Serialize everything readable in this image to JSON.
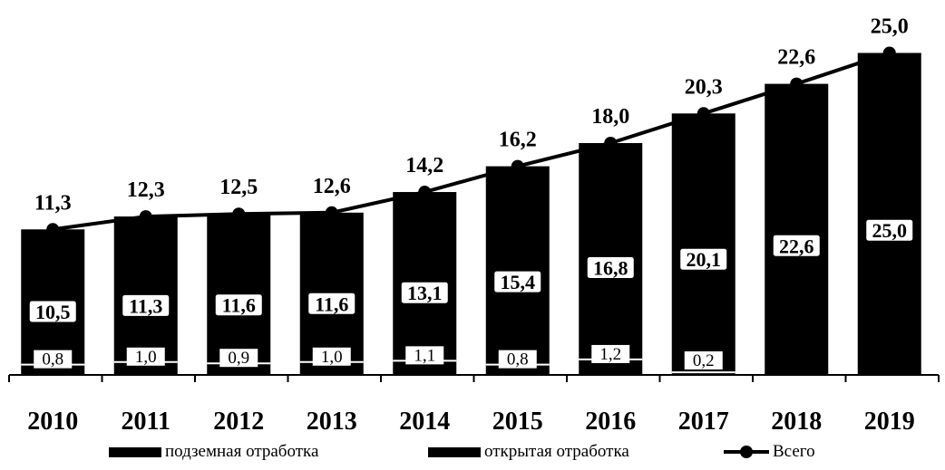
{
  "chart_data": {
    "type": "bar",
    "stacked": true,
    "title": "",
    "xlabel": "",
    "ylabel": "",
    "ylim": [
      0,
      27
    ],
    "grid": false,
    "legend_position": "bottom",
    "categories": [
      "2010",
      "2011",
      "2012",
      "2013",
      "2014",
      "2015",
      "2016",
      "2017",
      "2018",
      "2019"
    ],
    "series": [
      {
        "name": "подземная отработка",
        "kind": "bar",
        "color": "#000000",
        "values": [
          0.8,
          1.0,
          0.9,
          1.0,
          1.1,
          0.8,
          1.2,
          0.2,
          null,
          null
        ],
        "labels": [
          "0,8",
          "1,0",
          "0,9",
          "1,0",
          "1,1",
          "0,8",
          "1,2",
          "0,2",
          "",
          ""
        ]
      },
      {
        "name": "открытая отработка",
        "kind": "bar",
        "color": "#000000",
        "values": [
          10.5,
          11.3,
          11.6,
          11.6,
          13.1,
          15.4,
          16.8,
          20.1,
          22.6,
          25.0
        ],
        "labels": [
          "10,5",
          "11,3",
          "11,6",
          "11,6",
          "13,1",
          "15,4",
          "16,8",
          "20,1",
          "22,6",
          "25,0"
        ]
      },
      {
        "name": "Всего",
        "kind": "line",
        "color": "#000000",
        "values": [
          11.3,
          12.3,
          12.5,
          12.6,
          14.2,
          16.2,
          18.0,
          20.3,
          22.6,
          25.0
        ],
        "labels": [
          "11,3",
          "12,3",
          "12,5",
          "12,6",
          "14,2",
          "16,2",
          "18,0",
          "20,3",
          "22,6",
          "25,0"
        ]
      }
    ]
  }
}
